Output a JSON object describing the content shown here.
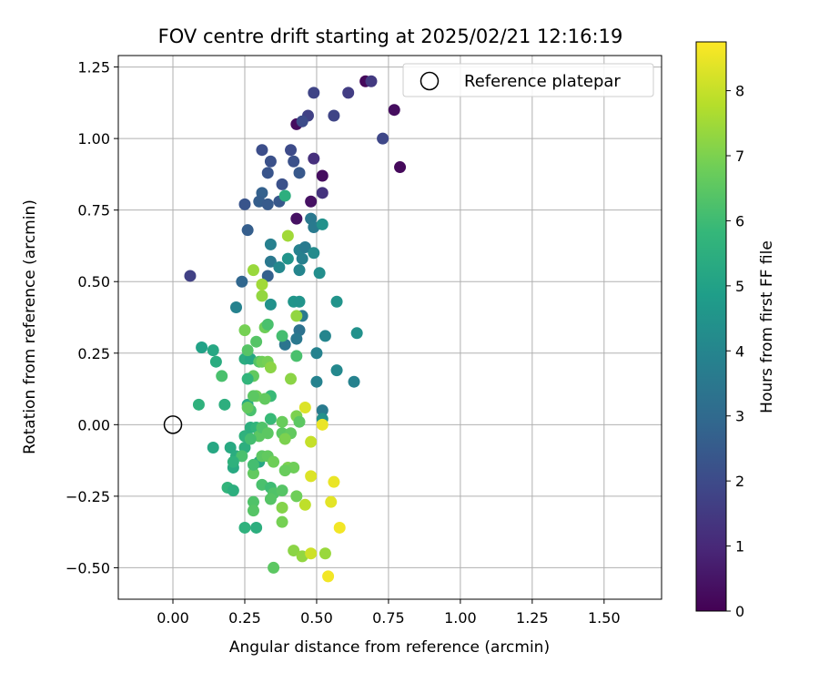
{
  "chart_data": {
    "type": "scatter",
    "title": "FOV centre drift starting at 2025/02/21 12:16:19",
    "xlabel": "Angular distance from reference (arcmin)",
    "ylabel": "Rotation from reference (arcmin)",
    "xlim": [
      -0.19,
      1.7
    ],
    "ylim": [
      -0.61,
      1.29
    ],
    "xticks": [
      0.0,
      0.25,
      0.5,
      0.75,
      1.0,
      1.25,
      1.5
    ],
    "xtick_labels": [
      "0.00",
      "0.25",
      "0.50",
      "0.75",
      "1.00",
      "1.25",
      "1.50"
    ],
    "yticks": [
      -0.5,
      -0.25,
      0.0,
      0.25,
      0.5,
      0.75,
      1.0,
      1.25
    ],
    "ytick_labels": [
      "−0.50",
      "−0.25",
      "0.00",
      "0.25",
      "0.50",
      "0.75",
      "1.00",
      "1.25"
    ],
    "grid": true,
    "legend": {
      "label": "Reference platepar",
      "placement": "top-right"
    },
    "reference_point": {
      "x": 0.0,
      "y": 0.0
    },
    "colorbar": {
      "label": "Hours from first FF file",
      "colormap": "viridis",
      "range": [
        0,
        8.75
      ],
      "ticks": [
        0,
        1,
        2,
        3,
        4,
        5,
        6,
        7,
        8
      ],
      "tick_labels": [
        "0",
        "1",
        "2",
        "3",
        "4",
        "5",
        "6",
        "7",
        "8"
      ]
    },
    "colormap_stops": [
      "#440154",
      "#482878",
      "#3e4989",
      "#31688e",
      "#26828e",
      "#1f9e89",
      "#35b779",
      "#6ece58",
      "#b5de2b",
      "#fde725"
    ],
    "points": [
      {
        "x": 0.67,
        "y": 1.2,
        "c": 0.2
      },
      {
        "x": 0.77,
        "y": 1.1,
        "c": 0.3
      },
      {
        "x": 0.79,
        "y": 0.9,
        "c": 0.2
      },
      {
        "x": 0.43,
        "y": 1.05,
        "c": 0.3
      },
      {
        "x": 0.52,
        "y": 0.87,
        "c": 0.3
      },
      {
        "x": 0.48,
        "y": 0.78,
        "c": 0.4
      },
      {
        "x": 0.43,
        "y": 0.72,
        "c": 0.4
      },
      {
        "x": 0.69,
        "y": 1.2,
        "c": 1.5
      },
      {
        "x": 0.61,
        "y": 1.16,
        "c": 1.6
      },
      {
        "x": 0.49,
        "y": 1.16,
        "c": 1.8
      },
      {
        "x": 0.47,
        "y": 1.08,
        "c": 1.7
      },
      {
        "x": 0.56,
        "y": 1.08,
        "c": 1.8
      },
      {
        "x": 0.73,
        "y": 1.0,
        "c": 1.9
      },
      {
        "x": 0.52,
        "y": 0.81,
        "c": 1.3
      },
      {
        "x": 0.49,
        "y": 0.93,
        "c": 1.2
      },
      {
        "x": 0.06,
        "y": 0.52,
        "c": 1.7
      },
      {
        "x": 0.31,
        "y": 0.96,
        "c": 2.1
      },
      {
        "x": 0.41,
        "y": 0.96,
        "c": 2.0
      },
      {
        "x": 0.42,
        "y": 0.92,
        "c": 2.2
      },
      {
        "x": 0.34,
        "y": 0.92,
        "c": 2.2
      },
      {
        "x": 0.33,
        "y": 0.88,
        "c": 2.3
      },
      {
        "x": 0.44,
        "y": 0.88,
        "c": 2.4
      },
      {
        "x": 0.38,
        "y": 0.84,
        "c": 2.2
      },
      {
        "x": 0.31,
        "y": 0.81,
        "c": 2.7
      },
      {
        "x": 0.25,
        "y": 0.77,
        "c": 2.3
      },
      {
        "x": 0.3,
        "y": 0.78,
        "c": 2.6
      },
      {
        "x": 0.33,
        "y": 0.77,
        "c": 2.5
      },
      {
        "x": 0.37,
        "y": 0.78,
        "c": 2.4
      },
      {
        "x": 0.26,
        "y": 0.68,
        "c": 2.6
      },
      {
        "x": 0.45,
        "y": 1.06,
        "c": 2.0
      },
      {
        "x": 0.48,
        "y": 0.72,
        "c": 3.5
      },
      {
        "x": 0.49,
        "y": 0.69,
        "c": 3.6
      },
      {
        "x": 0.52,
        "y": 0.7,
        "c": 4.4
      },
      {
        "x": 0.34,
        "y": 0.63,
        "c": 3.8
      },
      {
        "x": 0.44,
        "y": 0.61,
        "c": 3.9
      },
      {
        "x": 0.46,
        "y": 0.62,
        "c": 3.6
      },
      {
        "x": 0.49,
        "y": 0.6,
        "c": 4.2
      },
      {
        "x": 0.4,
        "y": 0.58,
        "c": 4.5
      },
      {
        "x": 0.45,
        "y": 0.58,
        "c": 3.8
      },
      {
        "x": 0.34,
        "y": 0.57,
        "c": 3.5
      },
      {
        "x": 0.37,
        "y": 0.55,
        "c": 4.1
      },
      {
        "x": 0.44,
        "y": 0.54,
        "c": 4.0
      },
      {
        "x": 0.51,
        "y": 0.53,
        "c": 4.3
      },
      {
        "x": 0.33,
        "y": 0.52,
        "c": 2.7
      },
      {
        "x": 0.24,
        "y": 0.5,
        "c": 2.9
      },
      {
        "x": 0.42,
        "y": 0.43,
        "c": 4.6
      },
      {
        "x": 0.44,
        "y": 0.43,
        "c": 4.5
      },
      {
        "x": 0.34,
        "y": 0.42,
        "c": 4.4
      },
      {
        "x": 0.22,
        "y": 0.41,
        "c": 3.9
      },
      {
        "x": 0.57,
        "y": 0.43,
        "c": 4.5
      },
      {
        "x": 0.45,
        "y": 0.38,
        "c": 3.6
      },
      {
        "x": 0.44,
        "y": 0.33,
        "c": 3.3
      },
      {
        "x": 0.53,
        "y": 0.31,
        "c": 4.0
      },
      {
        "x": 0.64,
        "y": 0.32,
        "c": 4.4
      },
      {
        "x": 0.43,
        "y": 0.3,
        "c": 3.5
      },
      {
        "x": 0.39,
        "y": 0.28,
        "c": 3.4
      },
      {
        "x": 0.5,
        "y": 0.25,
        "c": 3.9
      },
      {
        "x": 0.57,
        "y": 0.19,
        "c": 4.1
      },
      {
        "x": 0.5,
        "y": 0.15,
        "c": 3.9
      },
      {
        "x": 0.63,
        "y": 0.15,
        "c": 3.9
      },
      {
        "x": 0.52,
        "y": 0.05,
        "c": 3.6
      },
      {
        "x": 0.52,
        "y": 0.02,
        "c": 4.4
      },
      {
        "x": 0.1,
        "y": 0.27,
        "c": 5.0
      },
      {
        "x": 0.14,
        "y": 0.26,
        "c": 5.2
      },
      {
        "x": 0.15,
        "y": 0.22,
        "c": 5.4
      },
      {
        "x": 0.17,
        "y": 0.17,
        "c": 6.2
      },
      {
        "x": 0.25,
        "y": 0.23,
        "c": 5.4
      },
      {
        "x": 0.27,
        "y": 0.23,
        "c": 5.2
      },
      {
        "x": 0.29,
        "y": 0.29,
        "c": 6.4
      },
      {
        "x": 0.26,
        "y": 0.26,
        "c": 6.4
      },
      {
        "x": 0.28,
        "y": 0.17,
        "c": 6.6
      },
      {
        "x": 0.26,
        "y": 0.16,
        "c": 5.7
      },
      {
        "x": 0.3,
        "y": 0.22,
        "c": 6.4
      },
      {
        "x": 0.31,
        "y": 0.22,
        "c": 6.8
      },
      {
        "x": 0.33,
        "y": 0.22,
        "c": 6.9
      },
      {
        "x": 0.34,
        "y": 0.2,
        "c": 7.2
      },
      {
        "x": 0.38,
        "y": 0.31,
        "c": 6.1
      },
      {
        "x": 0.43,
        "y": 0.24,
        "c": 6.2
      },
      {
        "x": 0.41,
        "y": 0.16,
        "c": 7.2
      },
      {
        "x": 0.32,
        "y": 0.34,
        "c": 6.8
      },
      {
        "x": 0.25,
        "y": 0.33,
        "c": 6.9
      },
      {
        "x": 0.33,
        "y": 0.35,
        "c": 6.2
      },
      {
        "x": 0.43,
        "y": 0.38,
        "c": 7.3
      },
      {
        "x": 0.31,
        "y": 0.45,
        "c": 7.3
      },
      {
        "x": 0.31,
        "y": 0.49,
        "c": 7.5
      },
      {
        "x": 0.28,
        "y": 0.54,
        "c": 7.4
      },
      {
        "x": 0.4,
        "y": 0.66,
        "c": 7.5
      },
      {
        "x": 0.39,
        "y": 0.8,
        "c": 5.5
      },
      {
        "x": 0.09,
        "y": 0.07,
        "c": 5.6
      },
      {
        "x": 0.18,
        "y": 0.07,
        "c": 5.5
      },
      {
        "x": 0.26,
        "y": 0.07,
        "c": 5.3
      },
      {
        "x": 0.27,
        "y": 0.05,
        "c": 6.2
      },
      {
        "x": 0.26,
        "y": 0.06,
        "c": 6.6
      },
      {
        "x": 0.29,
        "y": 0.1,
        "c": 6.8
      },
      {
        "x": 0.28,
        "y": 0.1,
        "c": 6.5
      },
      {
        "x": 0.34,
        "y": 0.1,
        "c": 5.9
      },
      {
        "x": 0.32,
        "y": 0.09,
        "c": 6.6
      },
      {
        "x": 0.43,
        "y": 0.03,
        "c": 7.0
      },
      {
        "x": 0.46,
        "y": 0.06,
        "c": 8.3
      },
      {
        "x": 0.52,
        "y": 0.0,
        "c": 8.5
      },
      {
        "x": 0.25,
        "y": -0.04,
        "c": 5.6
      },
      {
        "x": 0.27,
        "y": -0.01,
        "c": 5.5
      },
      {
        "x": 0.29,
        "y": -0.01,
        "c": 5.7
      },
      {
        "x": 0.3,
        "y": -0.04,
        "c": 6.5
      },
      {
        "x": 0.34,
        "y": 0.02,
        "c": 5.9
      },
      {
        "x": 0.31,
        "y": -0.01,
        "c": 6.3
      },
      {
        "x": 0.33,
        "y": -0.03,
        "c": 6.5
      },
      {
        "x": 0.38,
        "y": -0.03,
        "c": 6.5
      },
      {
        "x": 0.38,
        "y": 0.01,
        "c": 6.7
      },
      {
        "x": 0.41,
        "y": -0.03,
        "c": 6.6
      },
      {
        "x": 0.39,
        "y": -0.05,
        "c": 7.0
      },
      {
        "x": 0.44,
        "y": 0.01,
        "c": 6.5
      },
      {
        "x": 0.48,
        "y": -0.06,
        "c": 8.0
      },
      {
        "x": 0.14,
        "y": -0.08,
        "c": 5.2
      },
      {
        "x": 0.2,
        "y": -0.08,
        "c": 5.3
      },
      {
        "x": 0.22,
        "y": -0.11,
        "c": 5.4
      },
      {
        "x": 0.25,
        "y": -0.08,
        "c": 5.5
      },
      {
        "x": 0.27,
        "y": -0.05,
        "c": 6.1
      },
      {
        "x": 0.24,
        "y": -0.11,
        "c": 6.2
      },
      {
        "x": 0.3,
        "y": -0.13,
        "c": 5.2
      },
      {
        "x": 0.31,
        "y": -0.11,
        "c": 6.5
      },
      {
        "x": 0.33,
        "y": -0.11,
        "c": 6.6
      },
      {
        "x": 0.35,
        "y": -0.13,
        "c": 6.8
      },
      {
        "x": 0.28,
        "y": -0.17,
        "c": 6.6
      },
      {
        "x": 0.21,
        "y": -0.15,
        "c": 5.3
      },
      {
        "x": 0.21,
        "y": -0.13,
        "c": 5.6
      },
      {
        "x": 0.19,
        "y": -0.22,
        "c": 5.7
      },
      {
        "x": 0.21,
        "y": -0.23,
        "c": 5.5
      },
      {
        "x": 0.28,
        "y": -0.14,
        "c": 6.1
      },
      {
        "x": 0.4,
        "y": -0.15,
        "c": 7.0
      },
      {
        "x": 0.42,
        "y": -0.15,
        "c": 6.8
      },
      {
        "x": 0.39,
        "y": -0.16,
        "c": 6.7
      },
      {
        "x": 0.48,
        "y": -0.18,
        "c": 8.3
      },
      {
        "x": 0.56,
        "y": -0.2,
        "c": 8.5
      },
      {
        "x": 0.31,
        "y": -0.21,
        "c": 6.2
      },
      {
        "x": 0.34,
        "y": -0.22,
        "c": 6.0
      },
      {
        "x": 0.35,
        "y": -0.24,
        "c": 6.3
      },
      {
        "x": 0.34,
        "y": -0.26,
        "c": 6.4
      },
      {
        "x": 0.38,
        "y": -0.23,
        "c": 6.4
      },
      {
        "x": 0.43,
        "y": -0.25,
        "c": 6.8
      },
      {
        "x": 0.46,
        "y": -0.28,
        "c": 7.9
      },
      {
        "x": 0.55,
        "y": -0.27,
        "c": 8.4
      },
      {
        "x": 0.28,
        "y": -0.27,
        "c": 6.3
      },
      {
        "x": 0.28,
        "y": -0.3,
        "c": 6.4
      },
      {
        "x": 0.38,
        "y": -0.29,
        "c": 7.1
      },
      {
        "x": 0.25,
        "y": -0.36,
        "c": 5.6
      },
      {
        "x": 0.29,
        "y": -0.36,
        "c": 5.5
      },
      {
        "x": 0.38,
        "y": -0.34,
        "c": 6.9
      },
      {
        "x": 0.58,
        "y": -0.36,
        "c": 8.6
      },
      {
        "x": 0.42,
        "y": -0.44,
        "c": 7.2
      },
      {
        "x": 0.45,
        "y": -0.46,
        "c": 7.3
      },
      {
        "x": 0.48,
        "y": -0.45,
        "c": 8.1
      },
      {
        "x": 0.53,
        "y": -0.45,
        "c": 7.4
      },
      {
        "x": 0.35,
        "y": -0.5,
        "c": 6.5
      },
      {
        "x": 0.54,
        "y": -0.53,
        "c": 8.6
      }
    ]
  }
}
